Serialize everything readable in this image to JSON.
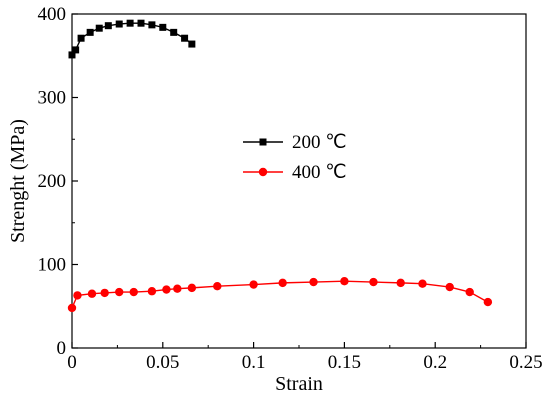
{
  "chart_data": {
    "type": "line",
    "xlabel": "Strain",
    "ylabel": "Strenght (MPa)",
    "xlim": [
      0,
      0.25
    ],
    "ylim": [
      0,
      400
    ],
    "x_ticks": [
      "0",
      "0.05",
      "0.1",
      "0.15",
      "0.2",
      "0.25"
    ],
    "y_ticks": [
      "0",
      "100",
      "200",
      "300",
      "400"
    ],
    "grid": false,
    "legend_position": "center",
    "series": [
      {
        "name": "200 ℃",
        "color": "#000000",
        "marker": "square",
        "x": [
          0.0,
          0.002,
          0.005,
          0.01,
          0.015,
          0.02,
          0.026,
          0.032,
          0.038,
          0.044,
          0.05,
          0.056,
          0.062,
          0.066
        ],
        "y": [
          351,
          357,
          371,
          378,
          383,
          386,
          388,
          389,
          389,
          387,
          384,
          378,
          371,
          364
        ]
      },
      {
        "name": "400 ℃",
        "color": "#ff0000",
        "marker": "circle",
        "x": [
          0.0,
          0.003,
          0.011,
          0.018,
          0.026,
          0.034,
          0.044,
          0.052,
          0.058,
          0.066,
          0.08,
          0.1,
          0.116,
          0.133,
          0.15,
          0.166,
          0.181,
          0.193,
          0.208,
          0.219,
          0.229
        ],
        "y": [
          48,
          63,
          65,
          66,
          67,
          67,
          68,
          70,
          71,
          72,
          74,
          76,
          78,
          79,
          80,
          79,
          78,
          77,
          73,
          67,
          55
        ]
      }
    ]
  }
}
